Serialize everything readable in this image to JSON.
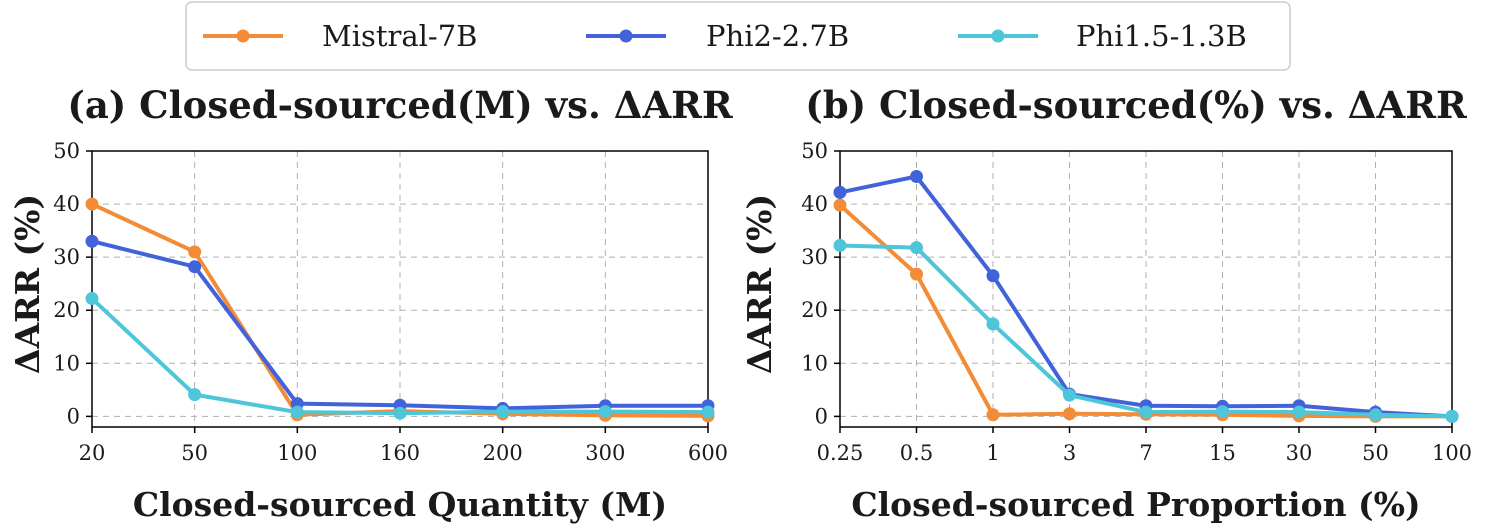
{
  "legend": {
    "entries": [
      {
        "name": "Mistral-7B",
        "color": "#F28C36"
      },
      {
        "name": "Phi2-2.7B",
        "color": "#4262D9"
      },
      {
        "name": "Phi1.5-1.3B",
        "color": "#4DC6D9"
      }
    ],
    "placement": "top-center"
  },
  "chart_data": [
    {
      "type": "line",
      "title": "(a) Closed-sourced(M) vs. ΔARR",
      "xlabel": "Closed-sourced Quantity (M)",
      "ylabel": "ΔARR (%)",
      "categories": [
        "20",
        "50",
        "100",
        "160",
        "200",
        "300",
        "600"
      ],
      "yticks": [
        "0",
        "10",
        "20",
        "30",
        "40",
        "50"
      ],
      "ylim": [
        -2,
        50
      ],
      "grid": true,
      "series": [
        {
          "name": "Mistral-7B",
          "color": "#F28C36",
          "values": [
            40,
            31,
            0.3,
            1.0,
            0.5,
            0.2,
            0.1
          ]
        },
        {
          "name": "Phi2-2.7B",
          "color": "#4262D9",
          "values": [
            33,
            28.2,
            2.4,
            2.1,
            1.5,
            2.0,
            2.0
          ]
        },
        {
          "name": "Phi1.5-1.3B",
          "color": "#4DC6D9",
          "values": [
            22.2,
            4.1,
            0.8,
            0.6,
            0.9,
            0.9,
            0.8
          ]
        }
      ]
    },
    {
      "type": "line",
      "title": "(b) Closed-sourced(%) vs. ΔARR",
      "xlabel": "Closed-sourced Proportion (%)",
      "ylabel": "ΔARR (%)",
      "categories": [
        "0.25",
        "0.5",
        "1",
        "3",
        "7",
        "15",
        "30",
        "50",
        "100"
      ],
      "yticks": [
        "0",
        "10",
        "20",
        "30",
        "40",
        "50"
      ],
      "ylim": [
        -2,
        50
      ],
      "grid": true,
      "series": [
        {
          "name": "Mistral-7B",
          "color": "#F28C36",
          "values": [
            39.8,
            26.8,
            0.3,
            0.5,
            0.4,
            0.3,
            0.1,
            0.0,
            0.0
          ]
        },
        {
          "name": "Phi2-2.7B",
          "color": "#4262D9",
          "values": [
            42.2,
            45.2,
            26.5,
            4.2,
            2.0,
            1.9,
            2.0,
            0.8,
            0.0
          ]
        },
        {
          "name": "Phi1.5-1.3B",
          "color": "#4DC6D9",
          "values": [
            32.2,
            31.8,
            17.4,
            4.0,
            0.8,
            0.9,
            0.8,
            0.3,
            0.0
          ]
        }
      ]
    }
  ]
}
